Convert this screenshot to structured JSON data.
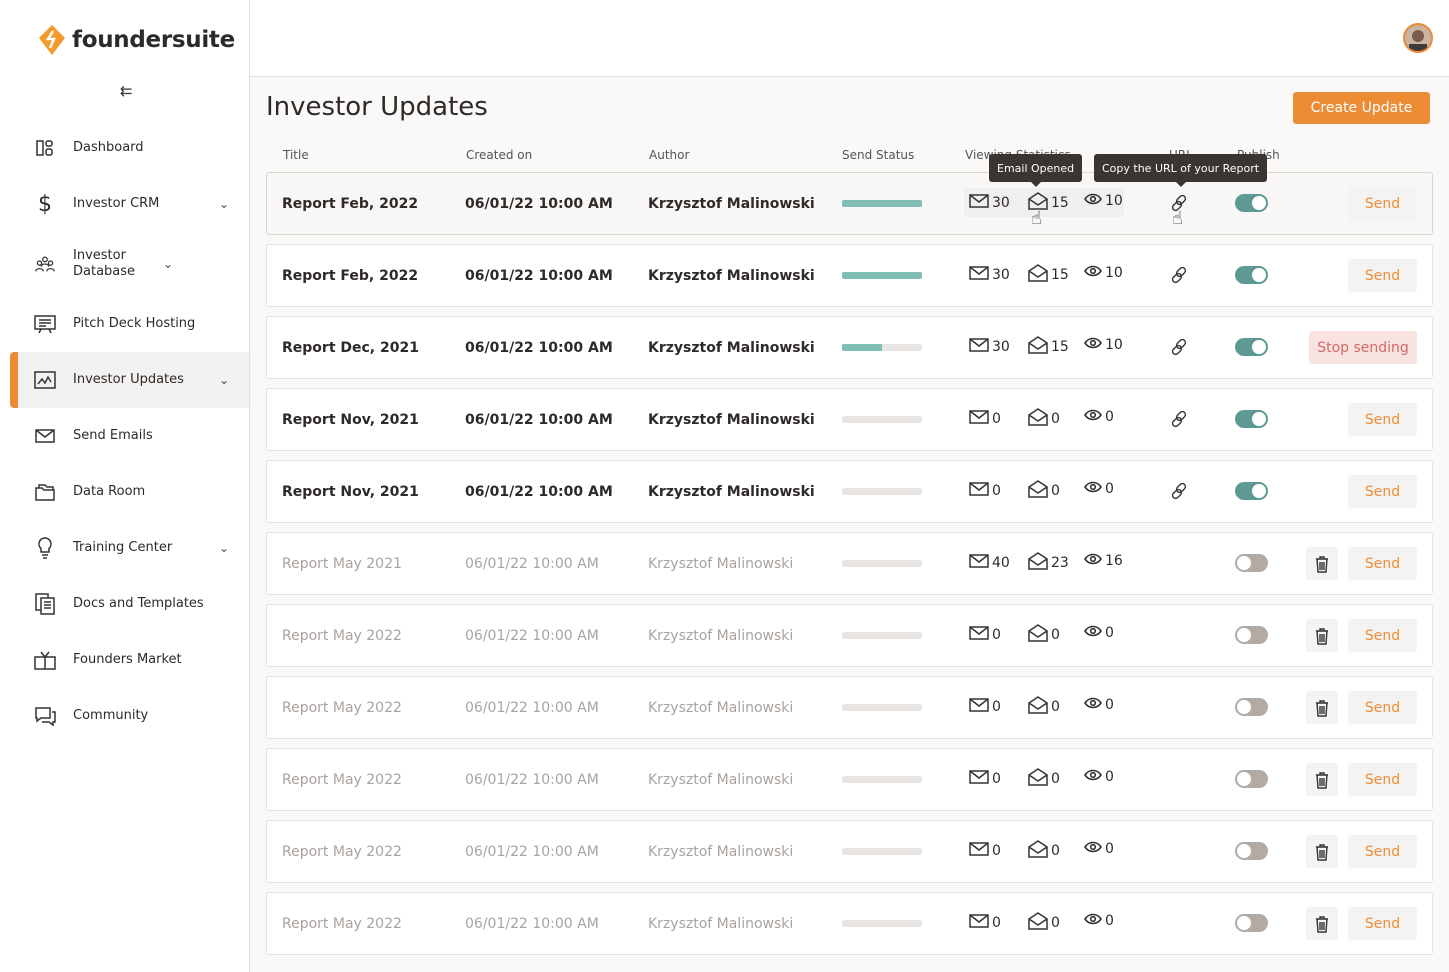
{
  "brand": {
    "name": "foundersuite",
    "accent": "#ec8c35"
  },
  "sidebar": {
    "collapse_icon": "collapse-left-icon",
    "items": [
      {
        "label": "Dashboard",
        "icon": "dashboard-icon",
        "chevron": false
      },
      {
        "label": "Investor CRM",
        "icon": "dollar-icon",
        "chevron": true
      },
      {
        "label": "Investor Database",
        "icon": "people-icon",
        "chevron": true
      },
      {
        "label": "Pitch Deck Hosting",
        "icon": "presentation-icon",
        "chevron": false
      },
      {
        "label": "Investor Updates",
        "icon": "chart-icon",
        "chevron": true,
        "active": true
      },
      {
        "label": "Send Emails",
        "icon": "mail-icon",
        "chevron": false
      },
      {
        "label": "Data Room",
        "icon": "folder-icon",
        "chevron": false
      },
      {
        "label": "Training Center",
        "icon": "lightbulb-icon",
        "chevron": true
      },
      {
        "label": "Docs and Templates",
        "icon": "documents-icon",
        "chevron": false
      },
      {
        "label": "Founders Market",
        "icon": "gift-icon",
        "chevron": false
      },
      {
        "label": "Community",
        "icon": "chat-icon",
        "chevron": false
      }
    ]
  },
  "page": {
    "title": "Investor Updates",
    "create_label": "Create Update"
  },
  "columns": {
    "title": "Title",
    "created": "Created on",
    "author": "Author",
    "status": "Send Status",
    "stats": "Viewing Statistics",
    "url": "URL",
    "publish": "Publish"
  },
  "tooltips": {
    "email_opened": "Email Opened",
    "copy_url": "Copy the URL of your Report"
  },
  "rows": [
    {
      "title": "Report Feb, 2022",
      "created": "06/01/22 10:00 AM",
      "author": "Krzysztof Malinowski",
      "progress": 100,
      "sent": "30",
      "opened": "15",
      "viewed": "10",
      "url": true,
      "published": true,
      "action": "Send",
      "deletable": false,
      "dim": false,
      "highlighted": true
    },
    {
      "title": "Report Feb, 2022",
      "created": "06/01/22 10:00 AM",
      "author": "Krzysztof Malinowski",
      "progress": 100,
      "sent": "30",
      "opened": "15",
      "viewed": "10",
      "url": true,
      "published": true,
      "action": "Send",
      "deletable": false,
      "dim": false
    },
    {
      "title": "Report Dec, 2021",
      "created": "06/01/22 10:00 AM",
      "author": "Krzysztof Malinowski",
      "progress": 50,
      "sent": "30",
      "opened": "15",
      "viewed": "10",
      "url": true,
      "published": true,
      "action": "Stop sending",
      "deletable": false,
      "dim": false
    },
    {
      "title": "Report Nov, 2021",
      "created": "06/01/22 10:00 AM",
      "author": "Krzysztof Malinowski",
      "progress": 0,
      "sent": "0",
      "opened": "0",
      "viewed": "0",
      "url": true,
      "published": true,
      "action": "Send",
      "deletable": false,
      "dim": false
    },
    {
      "title": "Report Nov, 2021",
      "created": "06/01/22 10:00 AM",
      "author": "Krzysztof Malinowski",
      "progress": 0,
      "sent": "0",
      "opened": "0",
      "viewed": "0",
      "url": true,
      "published": true,
      "action": "Send",
      "deletable": false,
      "dim": false
    },
    {
      "title": "Report May 2021",
      "created": "06/01/22 10:00 AM",
      "author": "Krzysztof Malinowski",
      "progress": 0,
      "sent": "40",
      "opened": "23",
      "viewed": "16",
      "url": false,
      "published": false,
      "action": "Send",
      "deletable": true,
      "dim": true
    },
    {
      "title": "Report May 2022",
      "created": "06/01/22 10:00 AM",
      "author": "Krzysztof Malinowski",
      "progress": 0,
      "sent": "0",
      "opened": "0",
      "viewed": "0",
      "url": false,
      "published": false,
      "action": "Send",
      "deletable": true,
      "dim": true
    },
    {
      "title": "Report May 2022",
      "created": "06/01/22 10:00 AM",
      "author": "Krzysztof Malinowski",
      "progress": 0,
      "sent": "0",
      "opened": "0",
      "viewed": "0",
      "url": false,
      "published": false,
      "action": "Send",
      "deletable": true,
      "dim": true
    },
    {
      "title": "Report May 2022",
      "created": "06/01/22 10:00 AM",
      "author": "Krzysztof Malinowski",
      "progress": 0,
      "sent": "0",
      "opened": "0",
      "viewed": "0",
      "url": false,
      "published": false,
      "action": "Send",
      "deletable": true,
      "dim": true
    },
    {
      "title": "Report May 2022",
      "created": "06/01/22 10:00 AM",
      "author": "Krzysztof Malinowski",
      "progress": 0,
      "sent": "0",
      "opened": "0",
      "viewed": "0",
      "url": false,
      "published": false,
      "action": "Send",
      "deletable": true,
      "dim": true
    },
    {
      "title": "Report May 2022",
      "created": "06/01/22 10:00 AM",
      "author": "Krzysztof Malinowski",
      "progress": 0,
      "sent": "0",
      "opened": "0",
      "viewed": "0",
      "url": false,
      "published": false,
      "action": "Send",
      "deletable": true,
      "dim": true
    }
  ]
}
